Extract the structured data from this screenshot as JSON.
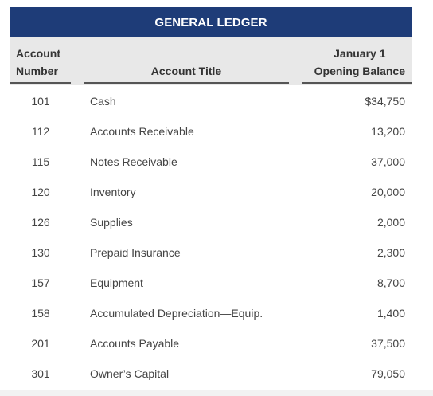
{
  "ledger": {
    "title": "GENERAL LEDGER",
    "headers": {
      "account_number": [
        "Account",
        "Number"
      ],
      "account_title": "Account Title",
      "opening_balance": [
        "January 1",
        "Opening Balance"
      ]
    },
    "rows": [
      {
        "number": "101",
        "title": "Cash",
        "balance": "$34,750"
      },
      {
        "number": "112",
        "title": "Accounts Receivable",
        "balance": "13,200"
      },
      {
        "number": "115",
        "title": "Notes Receivable",
        "balance": "37,000"
      },
      {
        "number": "120",
        "title": "Inventory",
        "balance": "20,000"
      },
      {
        "number": "126",
        "title": "Supplies",
        "balance": "2,000"
      },
      {
        "number": "130",
        "title": "Prepaid Insurance",
        "balance": "2,300"
      },
      {
        "number": "157",
        "title": "Equipment",
        "balance": "8,700"
      },
      {
        "number": "158",
        "title": "Accumulated Depreciation—Equip.",
        "balance": "1,400"
      },
      {
        "number": "201",
        "title": "Accounts Payable",
        "balance": "37,500"
      },
      {
        "number": "301",
        "title": "Owner’s Capital",
        "balance": "79,050"
      }
    ]
  }
}
